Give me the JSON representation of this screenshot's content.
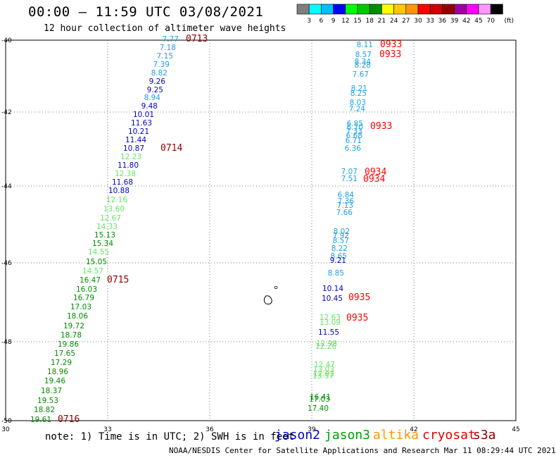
{
  "title": "00:00 – 11:59 UTC 03/08/2021",
  "subtitle": "12 hour collection of altimeter wave heights",
  "legend": {
    "unit": "(ft)",
    "bins": [
      {
        "label": "3",
        "color": "#7f7f7f"
      },
      {
        "label": "6",
        "color": "#00ffff"
      },
      {
        "label": "9",
        "color": "#00bfff"
      },
      {
        "label": "12",
        "color": "#0000ff"
      },
      {
        "label": "15",
        "color": "#00ff00"
      },
      {
        "label": "18",
        "color": "#00c800"
      },
      {
        "label": "21",
        "color": "#008c00"
      },
      {
        "label": "24",
        "color": "#ffff00"
      },
      {
        "label": "27",
        "color": "#ffc800"
      },
      {
        "label": "30",
        "color": "#ff9600"
      },
      {
        "label": "33",
        "color": "#ff0000"
      },
      {
        "label": "36",
        "color": "#d20000"
      },
      {
        "label": "39",
        "color": "#960000"
      },
      {
        "label": "42",
        "color": "#a000a0"
      },
      {
        "label": "45",
        "color": "#ff00ff"
      },
      {
        "label": "70",
        "color": "#ff96ff"
      },
      {
        "label": "",
        "color": "#000000"
      }
    ]
  },
  "map": {
    "lon_ticks": [
      "30",
      "33",
      "36",
      "39",
      "42",
      "45"
    ],
    "lat_ticks": [
      "-40",
      "-42",
      "-44",
      "-46",
      "-48",
      "-50"
    ],
    "left_track": {
      "readings": [
        {
          "v": "7.77",
          "c": "#1ea0e6"
        },
        {
          "v": "7.18",
          "c": "#1ea0e6"
        },
        {
          "v": "7.15",
          "c": "#1ea0e6"
        },
        {
          "v": "7.39",
          "c": "#1ea0e6"
        },
        {
          "v": "8.82",
          "c": "#1ea0e6"
        },
        {
          "v": "9.26",
          "c": "#0000c8"
        },
        {
          "v": "9.25",
          "c": "#0000c8"
        },
        {
          "v": "8.94",
          "c": "#1ea0e6"
        },
        {
          "v": "9.48",
          "c": "#0000c8"
        },
        {
          "v": "10.01",
          "c": "#0000c8"
        },
        {
          "v": "11.63",
          "c": "#0000c8"
        },
        {
          "v": "10.21",
          "c": "#0000c8"
        },
        {
          "v": "11.44",
          "c": "#0000c8"
        },
        {
          "v": "10.87",
          "c": "#0000c8"
        },
        {
          "v": "12.23",
          "c": "#64e664"
        },
        {
          "v": "11.80",
          "c": "#0000c8"
        },
        {
          "v": "12.38",
          "c": "#64e664"
        },
        {
          "v": "11.68",
          "c": "#0000c8"
        },
        {
          "v": "10.88",
          "c": "#0000c8"
        },
        {
          "v": "12.16",
          "c": "#64e664"
        },
        {
          "v": "13.60",
          "c": "#64e664"
        },
        {
          "v": "12.67",
          "c": "#64e664"
        },
        {
          "v": "14.33",
          "c": "#64e664"
        },
        {
          "v": "15.13",
          "c": "#008c00"
        },
        {
          "v": "15.34",
          "c": "#008c00"
        },
        {
          "v": "14.55",
          "c": "#64e664"
        },
        {
          "v": "15.05",
          "c": "#008c00"
        },
        {
          "v": "14.57",
          "c": "#64e664"
        },
        {
          "v": "16.47",
          "c": "#008c00"
        },
        {
          "v": "16.03",
          "c": "#008c00"
        },
        {
          "v": "16.79",
          "c": "#008c00"
        },
        {
          "v": "17.03",
          "c": "#008c00"
        },
        {
          "v": "18.06",
          "c": "#008c00"
        },
        {
          "v": "19.72",
          "c": "#008c00"
        },
        {
          "v": "18.78",
          "c": "#008c00"
        },
        {
          "v": "19.86",
          "c": "#008c00"
        },
        {
          "v": "17.65",
          "c": "#008c00"
        },
        {
          "v": "17.29",
          "c": "#008c00"
        },
        {
          "v": "18.96",
          "c": "#008c00"
        },
        {
          "v": "19.46",
          "c": "#008c00"
        },
        {
          "v": "18.37",
          "c": "#008c00"
        },
        {
          "v": "19.53",
          "c": "#008c00"
        },
        {
          "v": "18.82",
          "c": "#008c00"
        },
        {
          "v": "19.61",
          "c": "#008c00"
        }
      ],
      "times": [
        {
          "t": "0713",
          "c": "#8c0000"
        },
        {
          "t": "0714",
          "c": "#8c0000"
        },
        {
          "t": "0715",
          "c": "#8c0000"
        },
        {
          "t": "0716",
          "c": "#8c0000"
        }
      ]
    },
    "right_track": {
      "readings": [
        {
          "v": "8.11",
          "c": "#1ea0e6"
        },
        {
          "v": "8.57",
          "c": "#1ea0e6"
        },
        {
          "v": "8.34",
          "c": "#1ea0e6"
        },
        {
          "v": "8.28",
          "c": "#1ea0e6"
        },
        {
          "v": "7.67",
          "c": "#1ea0e6"
        },
        {
          "v": "8.21",
          "c": "#1ea0e6"
        },
        {
          "v": "8.25",
          "c": "#1ea0e6"
        },
        {
          "v": "8.03",
          "c": "#1ea0e6"
        },
        {
          "v": "7.24",
          "c": "#1ea0e6"
        },
        {
          "v": "6.85",
          "c": "#1ea0e6"
        },
        {
          "v": "6.70",
          "c": "#1ea0e6"
        },
        {
          "v": "7.33",
          "c": "#1ea0e6"
        },
        {
          "v": "6.68",
          "c": "#1ea0e6"
        },
        {
          "v": "6.71",
          "c": "#1ea0e6"
        },
        {
          "v": "6.36",
          "c": "#1ea0e6"
        },
        {
          "v": "7.07",
          "c": "#1ea0e6"
        },
        {
          "v": "7.51",
          "c": "#1ea0e6"
        },
        {
          "v": "6.84",
          "c": "#1ea0e6"
        },
        {
          "v": "7.36",
          "c": "#1ea0e6"
        },
        {
          "v": "7.13",
          "c": "#1ea0e6"
        },
        {
          "v": "7.66",
          "c": "#1ea0e6"
        },
        {
          "v": "8.02",
          "c": "#1ea0e6"
        },
        {
          "v": "7.92",
          "c": "#1ea0e6"
        },
        {
          "v": "8.57",
          "c": "#1ea0e6"
        },
        {
          "v": "8.22",
          "c": "#1ea0e6"
        },
        {
          "v": "8.65",
          "c": "#1ea0e6"
        },
        {
          "v": "9.21",
          "c": "#0000c8"
        },
        {
          "v": "8.85",
          "c": "#1ea0e6"
        },
        {
          "v": "10.14",
          "c": "#0000c8"
        },
        {
          "v": "10.45",
          "c": "#0000c8"
        },
        {
          "v": "12.63",
          "c": "#64e664"
        },
        {
          "v": "13.09",
          "c": "#64e664"
        },
        {
          "v": "11.55",
          "c": "#0000c8"
        },
        {
          "v": "12.98",
          "c": "#64e664"
        },
        {
          "v": "12.26",
          "c": "#64e664"
        },
        {
          "v": "12.47",
          "c": "#64e664"
        },
        {
          "v": "13.03",
          "c": "#64e664"
        },
        {
          "v": "12.93",
          "c": "#64e664"
        },
        {
          "v": "13.57",
          "c": "#64e664"
        },
        {
          "v": "16.41",
          "c": "#008c00"
        },
        {
          "v": "17.03",
          "c": "#008c00"
        },
        {
          "v": "17.40",
          "c": "#008c00"
        }
      ],
      "times": [
        {
          "t": "0933",
          "c": "#ff0000"
        },
        {
          "t": "0933",
          "c": "#ff0000"
        },
        {
          "t": "0933",
          "c": "#ff0000"
        },
        {
          "t": "0934",
          "c": "#ff0000"
        },
        {
          "t": "0934",
          "c": "#ff0000"
        },
        {
          "t": "0935",
          "c": "#ff0000"
        },
        {
          "t": "0935",
          "c": "#ff0000"
        }
      ]
    }
  },
  "note": "note: 1) Time is in UTC; 2) SWH is in feet",
  "satellites": [
    {
      "name": "jason2",
      "color": "#0000c8"
    },
    {
      "name": "jason3",
      "color": "#00a000"
    },
    {
      "name": "altika",
      "color": "#ff9600"
    },
    {
      "name": "cryosat",
      "color": "#e60000"
    },
    {
      "name": "s3a",
      "color": "#8c0000"
    }
  ],
  "credit": "NOAA/NESDIS Center for Satellite Applications and Research   Mar 11 08:29:44 UTC 2021"
}
